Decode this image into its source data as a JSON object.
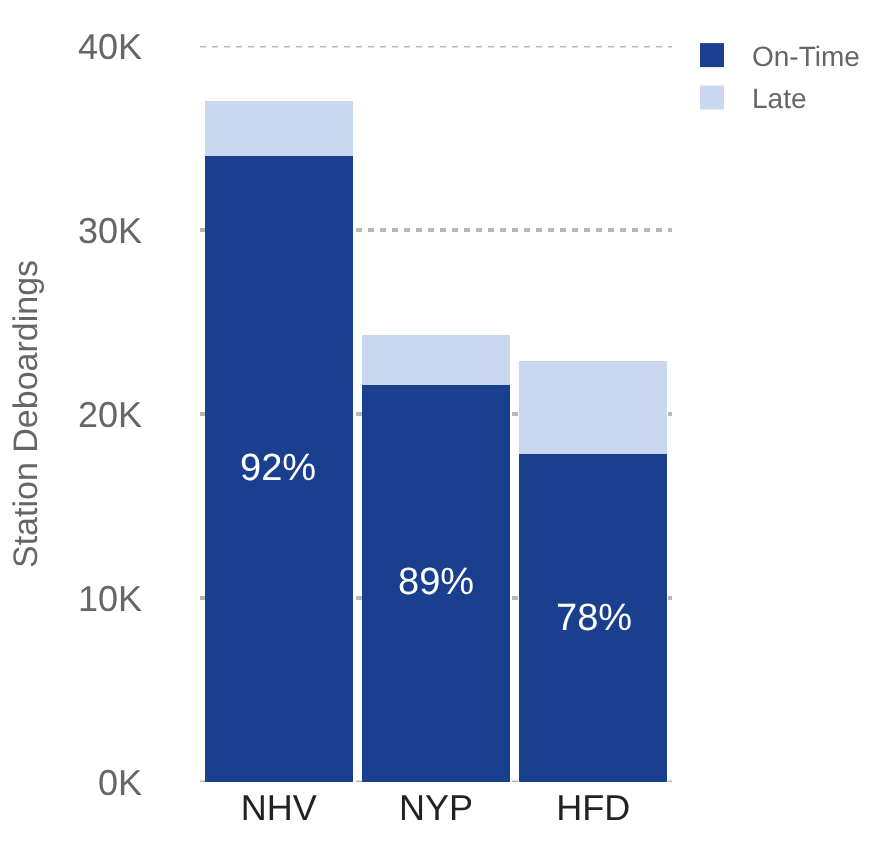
{
  "chart_data": {
    "type": "bar",
    "stacked": true,
    "ylabel": "Station Deboardings",
    "categories": [
      "NHV",
      "NYP",
      "HFD"
    ],
    "series": [
      {
        "name": "On-Time",
        "color": "#1a3f8f",
        "values": [
          34000,
          21600,
          17800
        ]
      },
      {
        "name": "Late",
        "color": "#c9d8f0",
        "values": [
          3000,
          2700,
          5100
        ]
      }
    ],
    "ylim": [
      0,
      40000
    ],
    "yticks": [
      {
        "value": 0,
        "label": "0K"
      },
      {
        "value": 10000,
        "label": "10K"
      },
      {
        "value": 20000,
        "label": "20K"
      },
      {
        "value": 30000,
        "label": "30K"
      },
      {
        "value": 40000,
        "label": "40K"
      }
    ],
    "grid": "y",
    "legend": "top right",
    "annotations": [
      "92%",
      "89%",
      "78%"
    ]
  }
}
